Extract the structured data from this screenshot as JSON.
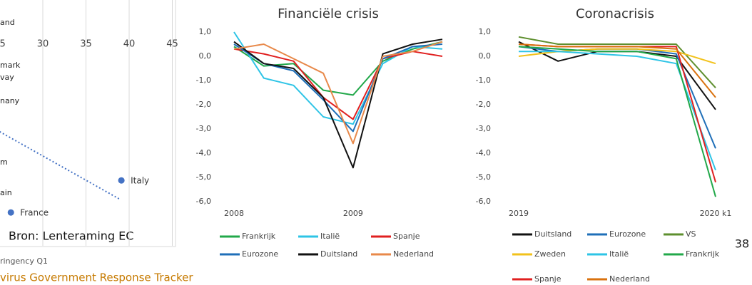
{
  "chart_data": [
    {
      "type": "scatter",
      "color": "#4472c4",
      "xlim": [
        25,
        45
      ],
      "xticks": [
        25,
        30,
        35,
        40,
        45
      ],
      "ylim": [
        -6,
        -1
      ],
      "points": [
        {
          "label": "France",
          "x": 26.3,
          "y": -5.17
        },
        {
          "label": "Italy",
          "x": 39.1,
          "y": -4.42
        }
      ],
      "trendline": {
        "x": [
          25,
          39
        ],
        "y": [
          -3.28,
          -4.87
        ]
      },
      "annotations": [
        "and",
        "mark",
        "vay",
        "nany",
        "m",
        "ain"
      ],
      "x_label": "ringency Q1"
    },
    {
      "type": "line",
      "title": "Financiële crisis",
      "categories": [
        "2008",
        null,
        null,
        null,
        "2009",
        null,
        null,
        null
      ],
      "ylim": [
        -6,
        1
      ],
      "yticks": [
        {
          "value": 1,
          "label": "1,0"
        },
        {
          "value": 0,
          "label": "0,0"
        },
        {
          "value": -1,
          "label": "-1,0"
        },
        {
          "value": -2,
          "label": "-2,0"
        },
        {
          "value": -3,
          "label": "-3,0"
        },
        {
          "value": -4,
          "label": "-4,0"
        },
        {
          "value": -5,
          "label": "-5,0"
        },
        {
          "value": -6,
          "label": "-6,0"
        }
      ],
      "series": [
        {
          "name": "Frankrijk",
          "color": "#22a84a",
          "values": [
            0.4,
            -0.4,
            -0.3,
            -1.4,
            -1.6,
            -0.2,
            0.3,
            0.6
          ]
        },
        {
          "name": "Italië",
          "color": "#2ec4e6",
          "values": [
            1.0,
            -0.9,
            -1.2,
            -2.5,
            -2.8,
            -0.3,
            0.4,
            0.3
          ]
        },
        {
          "name": "Spanje",
          "color": "#e02020",
          "values": [
            0.3,
            0.1,
            -0.2,
            -1.7,
            -2.6,
            -0.1,
            0.2,
            0.0
          ]
        },
        {
          "name": "Eurozone",
          "color": "#1f6fb8",
          "values": [
            0.5,
            -0.3,
            -0.6,
            -1.8,
            -3.1,
            -0.1,
            0.4,
            0.5
          ]
        },
        {
          "name": "Duitsland",
          "color": "#111111",
          "values": [
            0.6,
            -0.3,
            -0.5,
            -1.7,
            -4.6,
            0.1,
            0.5,
            0.7
          ]
        },
        {
          "name": "Nederland",
          "color": "#e8894a",
          "values": [
            0.3,
            0.5,
            -0.1,
            -0.7,
            -3.6,
            0.0,
            0.2,
            0.6
          ]
        }
      ]
    },
    {
      "type": "line",
      "title": "Coronacrisis",
      "categories": [
        "2019",
        null,
        null,
        null,
        null,
        "2020 k1"
      ],
      "ylim": [
        -6,
        1
      ],
      "yticks": [
        {
          "value": 1,
          "label": "1,0"
        },
        {
          "value": 0,
          "label": "0,0"
        },
        {
          "value": -1,
          "label": "-1,0"
        },
        {
          "value": -2,
          "label": "-2,0"
        },
        {
          "value": -3,
          "label": "-3,0"
        },
        {
          "value": -4,
          "label": "-4,0"
        },
        {
          "value": -5,
          "label": "-5,0"
        },
        {
          "value": -6,
          "label": "-6,0"
        }
      ],
      "series": [
        {
          "name": "Duitsland",
          "color": "#111111",
          "values": [
            0.6,
            -0.2,
            0.2,
            0.2,
            0.0,
            -2.2
          ]
        },
        {
          "name": "Eurozone",
          "color": "#1f6fb8",
          "values": [
            0.4,
            0.2,
            0.3,
            0.3,
            0.1,
            -3.8
          ]
        },
        {
          "name": "VS",
          "color": "#5e8f2e",
          "values": [
            0.8,
            0.5,
            0.5,
            0.5,
            0.5,
            -1.3
          ]
        },
        {
          "name": "Zweden",
          "color": "#f2c21b",
          "values": [
            0.0,
            0.2,
            0.3,
            0.3,
            0.2,
            -0.3
          ]
        },
        {
          "name": "Italië",
          "color": "#2ec4e6",
          "values": [
            0.2,
            0.2,
            0.1,
            0.0,
            -0.3,
            -4.7
          ]
        },
        {
          "name": "Frankrijk",
          "color": "#22a84a",
          "values": [
            0.4,
            0.3,
            0.2,
            0.2,
            -0.1,
            -5.8
          ]
        },
        {
          "name": "Spanje",
          "color": "#e02020",
          "values": [
            0.5,
            0.4,
            0.4,
            0.4,
            0.4,
            -5.2
          ]
        },
        {
          "name": "Nederland",
          "color": "#d9720f",
          "values": [
            0.5,
            0.4,
            0.4,
            0.4,
            0.3,
            -1.7
          ]
        }
      ]
    }
  ],
  "source": "Bron: Lenteraming EC",
  "footer": "virus Government Response Tracker",
  "page_number": "38"
}
